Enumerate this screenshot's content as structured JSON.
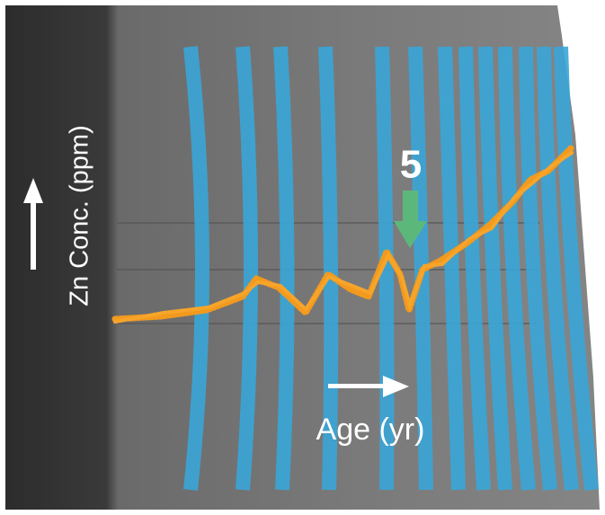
{
  "labels": {
    "y_axis": "Zn Conc. (ppm)",
    "x_axis": "Age (yr)",
    "marker": "5"
  }
}
